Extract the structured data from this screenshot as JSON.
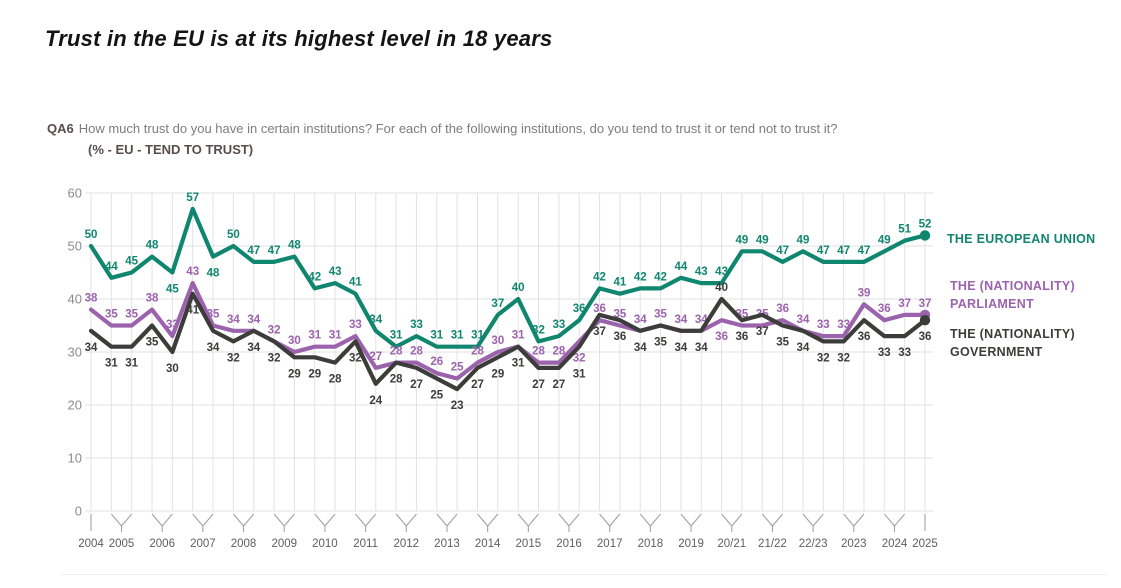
{
  "title": "Trust in the EU is at its highest level in 18 years",
  "question": {
    "code": "QA6",
    "text": "How much trust do you have in certain institutions? For each of the following institutions, do you tend to trust it or tend not to trust it?",
    "subtitle": "(% - EU - TEND TO TRUST)"
  },
  "chart_data": {
    "type": "line",
    "title": "Trust in the EU is at its highest level in 18 years",
    "subtitle": "(% - EU - TEND TO TRUST)",
    "ylim": [
      0,
      60
    ],
    "yticks": [
      0,
      10,
      20,
      30,
      40,
      50,
      60
    ],
    "grid": true,
    "legend_position": "right",
    "x_labels": [
      "2004",
      "2005",
      "2006",
      "2007",
      "2008",
      "2009",
      "2010",
      "2011",
      "2012",
      "2013",
      "2014",
      "2015",
      "2016",
      "2017",
      "2018",
      "2019",
      "20/21",
      "21/22",
      "22/23",
      "2023",
      "2024",
      "2025"
    ],
    "points_per_label": [
      1,
      2,
      2,
      2,
      2,
      2,
      2,
      2,
      2,
      2,
      2,
      2,
      2,
      2,
      2,
      2,
      2,
      2,
      2,
      2,
      2,
      1
    ],
    "series": [
      {
        "name": "THE EUROPEAN UNION",
        "legend_lines": [
          "THE EUROPEAN UNION"
        ],
        "color": "#10866f",
        "values": [
          50,
          44,
          45,
          48,
          45,
          57,
          48,
          50,
          47,
          47,
          48,
          42,
          43,
          41,
          34,
          31,
          33,
          31,
          31,
          31,
          37,
          40,
          32,
          33,
          36,
          42,
          41,
          42,
          42,
          44,
          43,
          43,
          49,
          49,
          47,
          49,
          47,
          47,
          47,
          49,
          51,
          52
        ]
      },
      {
        "name": "THE (NATIONALITY) PARLIAMENT",
        "legend_lines": [
          "THE (NATIONALITY)",
          "PARLIAMENT"
        ],
        "color": "#9c63ad",
        "values": [
          38,
          35,
          35,
          38,
          33,
          43,
          35,
          34,
          34,
          32,
          30,
          31,
          31,
          33,
          27,
          28,
          28,
          26,
          25,
          28,
          30,
          31,
          28,
          28,
          32,
          36,
          35,
          34,
          35,
          34,
          34,
          36,
          35,
          35,
          36,
          34,
          33,
          33,
          39,
          36,
          37,
          37
        ]
      },
      {
        "name": "THE (NATIONALITY) GOVERNMENT",
        "legend_lines": [
          "THE (NATIONALITY)",
          "GOVERNMENT"
        ],
        "color": "#3c3c3b",
        "values": [
          34,
          31,
          31,
          35,
          30,
          41,
          34,
          32,
          34,
          32,
          29,
          29,
          28,
          32,
          24,
          28,
          27,
          25,
          23,
          27,
          29,
          31,
          27,
          27,
          31,
          37,
          36,
          34,
          35,
          34,
          34,
          40,
          36,
          37,
          35,
          34,
          32,
          32,
          36,
          33,
          33,
          36
        ]
      }
    ]
  },
  "colors": {
    "background": "#ffffff",
    "title_text": "#141414",
    "question_code": "#584c4c",
    "question_text": "#7d7d7d",
    "grid": "#e2e2e2",
    "axis_label": "#8c8c8c",
    "year_label": "#5f5f5f",
    "tick": "#a3a3a3",
    "eu_line": "#10866f",
    "parliament_line": "#9c63ad",
    "government_line": "#3c3c3b"
  }
}
